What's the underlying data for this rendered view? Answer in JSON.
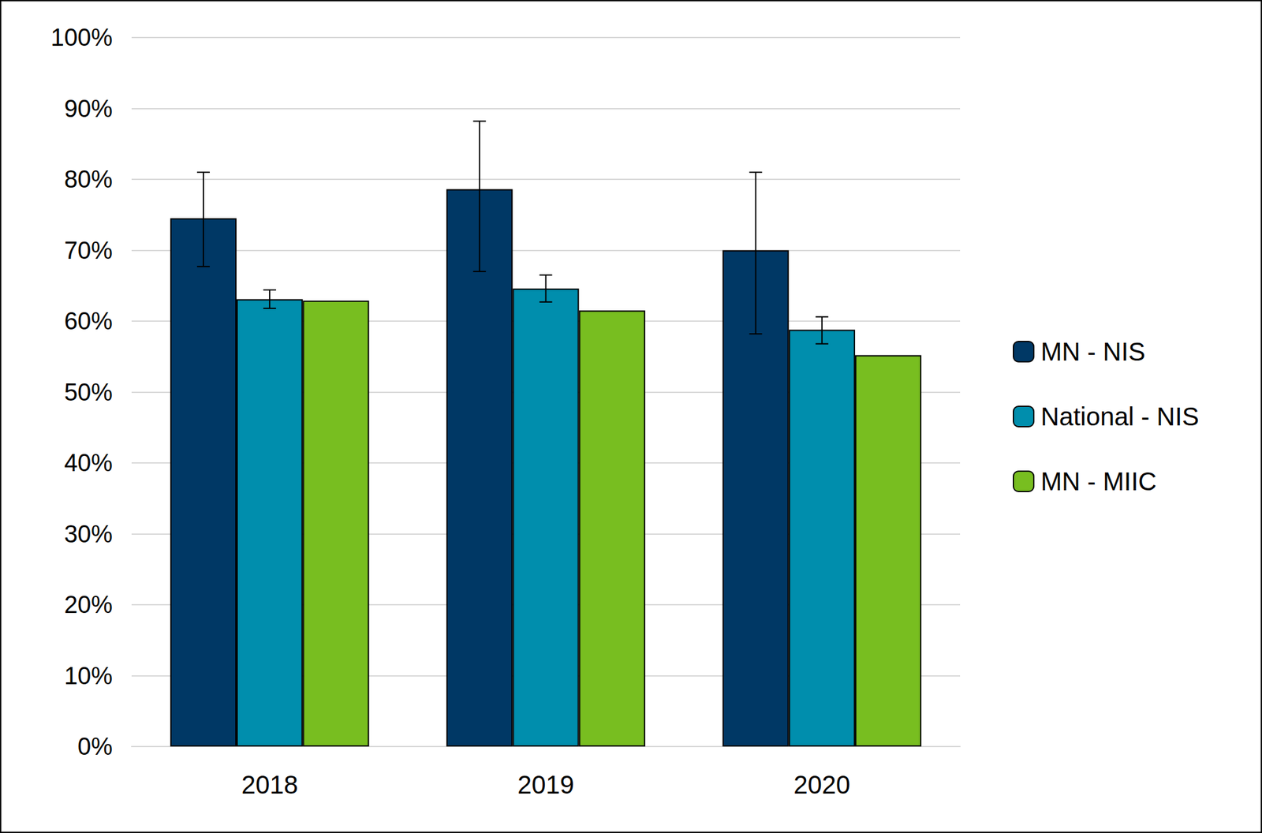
{
  "chart_data": {
    "type": "bar",
    "categories": [
      "2018",
      "2019",
      "2020"
    ],
    "series": [
      {
        "name": "MN - NIS",
        "color": "#003865",
        "values": [
          74.5,
          78.6,
          70.0
        ],
        "error_bars": [
          [
            67.7,
            81.0
          ],
          [
            67.0,
            88.2
          ],
          [
            58.2,
            81.0
          ]
        ]
      },
      {
        "name": "National - NIS",
        "color": "#008ead",
        "values": [
          63.1,
          64.6,
          58.8
        ],
        "error_bars": [
          [
            61.8,
            64.4
          ],
          [
            62.7,
            66.5
          ],
          [
            56.8,
            60.6
          ]
        ]
      },
      {
        "name": "MN - MIIC",
        "color": "#78be20",
        "values": [
          62.9,
          61.5,
          55.2
        ]
      }
    ],
    "ylim": [
      0,
      100
    ],
    "yticks": [
      {
        "value": 0,
        "label": "0%"
      },
      {
        "value": 10,
        "label": "10%"
      },
      {
        "value": 20,
        "label": "20%"
      },
      {
        "value": 30,
        "label": "30%"
      },
      {
        "value": 40,
        "label": "40%"
      },
      {
        "value": 50,
        "label": "50%"
      },
      {
        "value": 60,
        "label": "60%"
      },
      {
        "value": 70,
        "label": "70%"
      },
      {
        "value": 80,
        "label": "80%"
      },
      {
        "value": 90,
        "label": "90%"
      },
      {
        "value": 100,
        "label": "100%"
      }
    ],
    "grid": true,
    "legend": "right"
  }
}
